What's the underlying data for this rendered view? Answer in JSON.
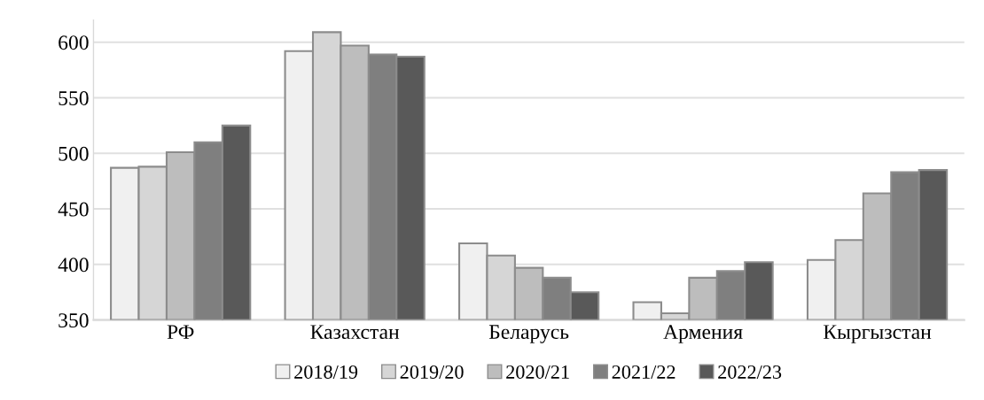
{
  "chart_data": {
    "type": "bar",
    "categories": [
      "РФ",
      "Казахстан",
      "Беларусь",
      "Армения",
      "Кыргызстан"
    ],
    "series": [
      {
        "name": "2018/19",
        "color": "#f0f0f0",
        "values": [
          487,
          592,
          419,
          366,
          404
        ]
      },
      {
        "name": "2019/20",
        "color": "#d6d6d6",
        "values": [
          488,
          609,
          408,
          356,
          422
        ]
      },
      {
        "name": "2020/21",
        "color": "#bdbdbd",
        "values": [
          501,
          597,
          397,
          388,
          464
        ]
      },
      {
        "name": "2021/22",
        "color": "#7f7f7f",
        "values": [
          510,
          589,
          388,
          394,
          483
        ]
      },
      {
        "name": "2022/23",
        "color": "#595959",
        "values": [
          525,
          587,
          375,
          402,
          485
        ]
      }
    ],
    "ylim": [
      350,
      620
    ],
    "yticks": [
      350,
      400,
      450,
      500,
      550,
      600
    ],
    "grid": "y",
    "legend": "bottom"
  }
}
